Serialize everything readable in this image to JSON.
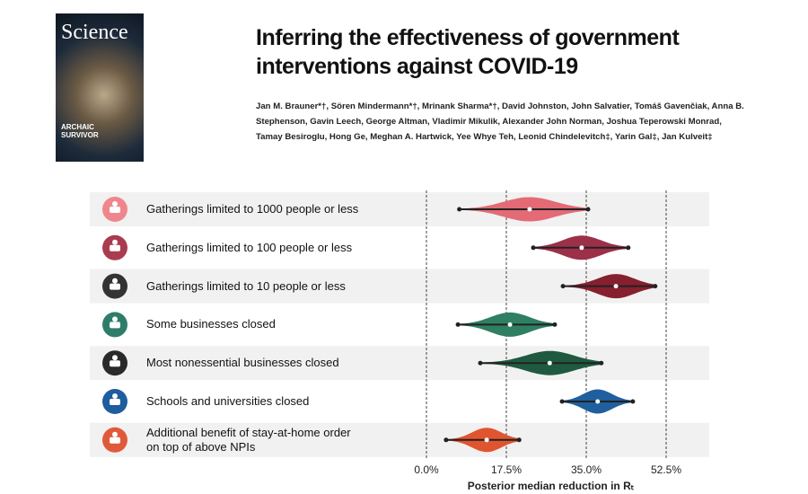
{
  "header": {
    "cover": {
      "masthead": "Science",
      "caption": "ARCHAIC SURVIVOR"
    },
    "title": "Inferring the effectiveness of government interventions against COVID-19",
    "authors": "Jan M. Brauner*†, Sören Mindermann*†, Mrinank Sharma*†, David Johnston, John Salvatier, Tomáš Gavenčiak, Anna B. Stephenson, Gavin Leech, George Altman, Vladimir Mikulik, Alexander John Norman, Joshua Teperowski Monrad, Tamay Besiroglu, Hong Ge, Meghan A. Hartwick, Yee Whye Teh, Leonid Chindelevitch‡, Yarin Gal‡, Jan Kulveit‡"
  },
  "chart_data": {
    "type": "violin",
    "categories": [
      "Gatherings limited to 1000 people or less",
      "Gatherings limited to 100 people or less",
      "Gatherings limited to 10 people or less",
      "Some businesses closed",
      "Most nonessential businesses closed",
      "Schools and universities closed",
      "Additional benefit of stay-at-home order\non top of above NPIs"
    ],
    "values": [
      22.6,
      34.0,
      41.5,
      18.3,
      27.0,
      37.5,
      13.2
    ],
    "lower": [
      7.2,
      23.4,
      29.9,
      6.9,
      11.8,
      29.7,
      4.3
    ],
    "upper": [
      35.4,
      44.2,
      50.1,
      28.1,
      38.3,
      45.2,
      20.3
    ],
    "colors": [
      "#e46a76",
      "#9c3049",
      "#86202f",
      "#2f7f62",
      "#1f5a40",
      "#1f5f9e",
      "#e0552f"
    ],
    "icon_colors": [
      "#f0868d",
      "#a93c50",
      "#333333",
      "#2e7d6a",
      "#2a2a2a",
      "#1e5d9e",
      "#e05a3a"
    ],
    "xlim": [
      0,
      52.5
    ],
    "xticks": [
      {
        "value": 0,
        "label": "0.0%"
      },
      {
        "value": 17.5,
        "label": "17.5%"
      },
      {
        "value": 35,
        "label": "35.0%"
      },
      {
        "value": 52.5,
        "label": "52.5%"
      }
    ],
    "xlabel": "Posterior median reduction in Rₜ",
    "grid": true
  }
}
